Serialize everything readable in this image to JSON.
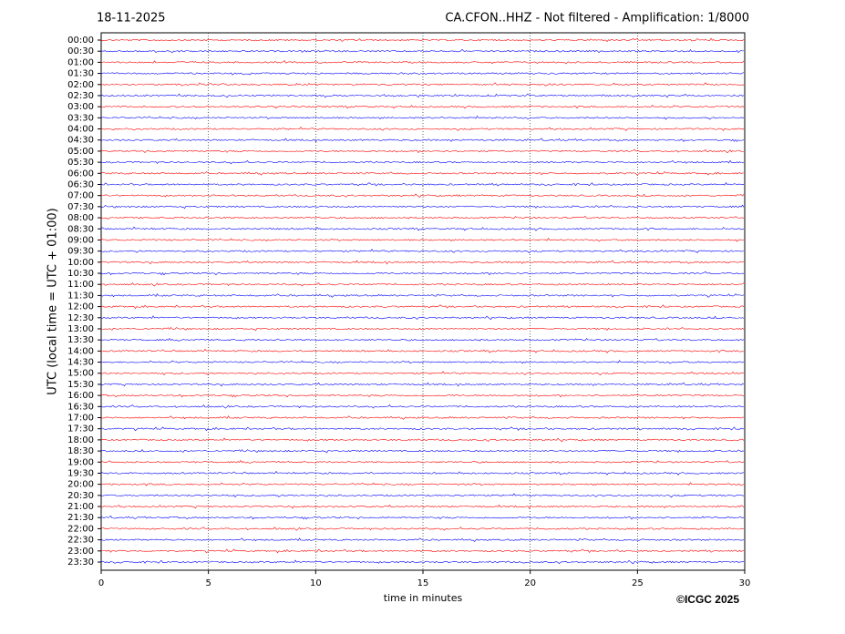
{
  "chart_data": {
    "type": "helicorder",
    "date": "18-11-2025",
    "title": "CA.CFON..HHZ - Not filtered - Amplification: 1/8000",
    "ylabel": "UTC (local time = UTC + 01:00)",
    "xlabel": "time in minutes",
    "copyright": "©ICGC 2025",
    "categories": [
      "00:00",
      "00:30",
      "01:00",
      "01:30",
      "02:00",
      "02:30",
      "03:00",
      "03:30",
      "04:00",
      "04:30",
      "05:00",
      "05:30",
      "06:00",
      "06:30",
      "07:00",
      "07:30",
      "08:00",
      "08:30",
      "09:00",
      "09:30",
      "10:00",
      "10:30",
      "11:00",
      "11:30",
      "12:00",
      "12:30",
      "13:00",
      "13:30",
      "14:00",
      "14:30",
      "15:00",
      "15:30",
      "16:00",
      "16:30",
      "17:00",
      "17:30",
      "18:00",
      "18:30",
      "19:00",
      "19:30",
      "20:00",
      "20:30",
      "21:00",
      "21:30",
      "22:00",
      "22:30",
      "23:00",
      "23:30"
    ],
    "colors": [
      "#ff0000",
      "#0000ff"
    ],
    "xlim": [
      0,
      30
    ],
    "xticks": [
      0,
      5,
      10,
      15,
      20,
      25,
      30
    ],
    "grid": true
  }
}
